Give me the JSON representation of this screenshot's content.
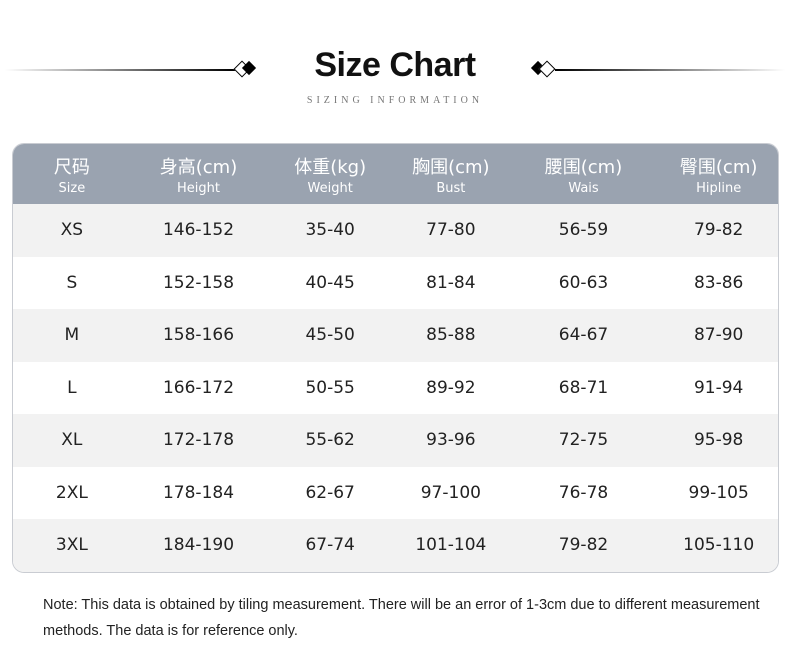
{
  "header": {
    "title": "Size Chart",
    "subtitle": "SIZING INFORMATION"
  },
  "table": {
    "columns": [
      {
        "zh": "尺码",
        "en": "Size"
      },
      {
        "zh": "身高(cm)",
        "en": "Height"
      },
      {
        "zh": "体重(kg)",
        "en": "Weight"
      },
      {
        "zh": "胸围(cm)",
        "en": "Bust"
      },
      {
        "zh": "腰围(cm)",
        "en": "Wais"
      },
      {
        "zh": "臀围(cm)",
        "en": "Hipline"
      }
    ],
    "rows": [
      [
        "XS",
        "146-152",
        "35-40",
        "77-80",
        "56-59",
        "79-82"
      ],
      [
        "S",
        "152-158",
        "40-45",
        "81-84",
        "60-63",
        "83-86"
      ],
      [
        "M",
        "158-166",
        "45-50",
        "85-88",
        "64-67",
        "87-90"
      ],
      [
        "L",
        "166-172",
        "50-55",
        "89-92",
        "68-71",
        "91-94"
      ],
      [
        "XL",
        "172-178",
        "55-62",
        "93-96",
        "72-75",
        "95-98"
      ],
      [
        "2XL",
        "178-184",
        "62-67",
        "97-100",
        "76-78",
        "99-105"
      ],
      [
        "3XL",
        "184-190",
        "67-74",
        "101-104",
        "79-82",
        "105-110"
      ]
    ]
  },
  "note": "Note: This data is obtained by tiling measurement. There will be an error of 1-3cm due to different measurement methods. The data is for reference only.",
  "colors": {
    "header_bg": "#9aa3b0",
    "stripe": "#f2f2f2"
  }
}
